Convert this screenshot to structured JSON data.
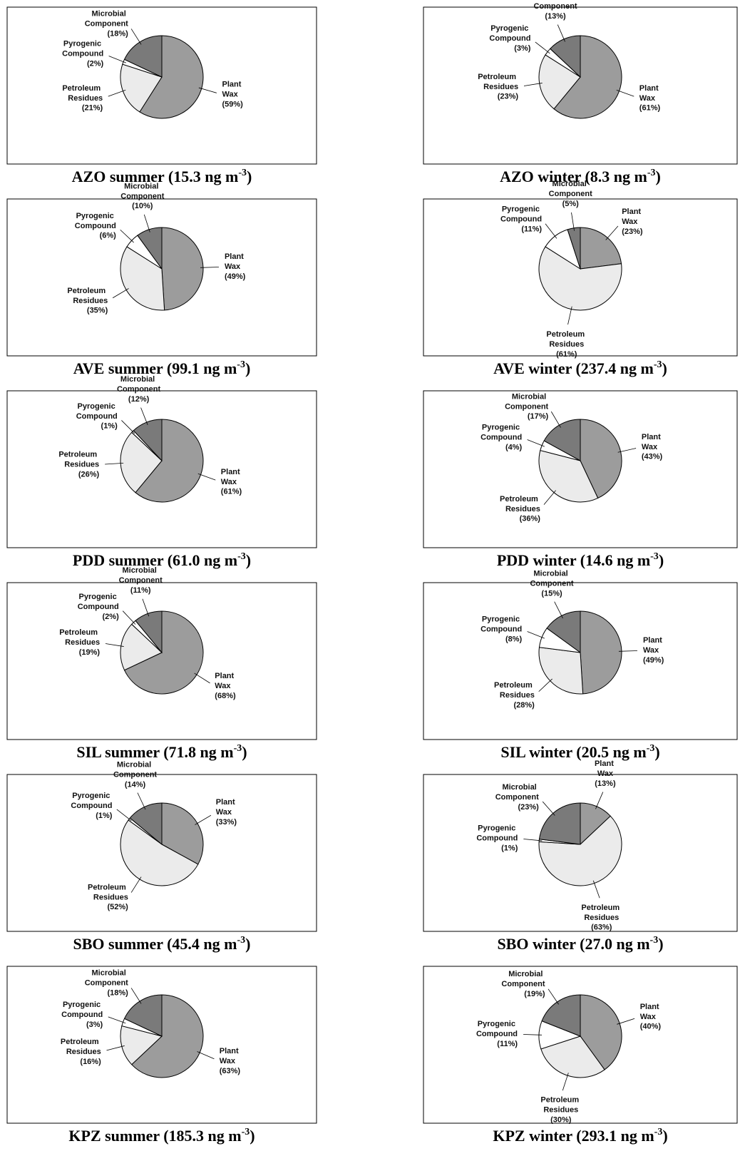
{
  "chart_data": [
    {
      "type": "pie",
      "title": "AZO summer (15.3 ng m",
      "title_sup": "-3",
      "title_end": ")",
      "categories": [
        "Plant Wax",
        "Petroleum Residues",
        "Pyrogenic Compound",
        "Microbial Component"
      ],
      "values": [
        59,
        21,
        2,
        18
      ],
      "value_labels": [
        "(59%)",
        "(21%)",
        "(2%)",
        "(18%)"
      ],
      "colors": [
        "#9c9c9c",
        "#ebebeb",
        "#ffffff",
        "#7a7a7a"
      ]
    },
    {
      "type": "pie",
      "title": "AZO winter (8.3 ng m",
      "title_sup": "-3",
      "title_end": ")",
      "categories": [
        "Plant Wax",
        "Petroleum Residues",
        "Pyrogenic Compound",
        "Microbial Component"
      ],
      "values": [
        61,
        23,
        3,
        13
      ],
      "value_labels": [
        "(61%)",
        "(23%)",
        "(3%)",
        "(13%)"
      ],
      "colors": [
        "#9c9c9c",
        "#ebebeb",
        "#ffffff",
        "#7a7a7a"
      ]
    },
    {
      "type": "pie",
      "title": "AVE summer (99.1 ng m",
      "title_sup": "-3",
      "title_end": ")",
      "categories": [
        "Plant Wax",
        "Petroleum Residues",
        "Pyrogenic Compound",
        "Microbial Component"
      ],
      "values": [
        49,
        35,
        6,
        10
      ],
      "value_labels": [
        "(49%)",
        "(35%)",
        "(6%)",
        "(10%)"
      ],
      "colors": [
        "#9c9c9c",
        "#ebebeb",
        "#ffffff",
        "#7a7a7a"
      ]
    },
    {
      "type": "pie",
      "title": "AVE winter (237.4 ng m",
      "title_sup": "-3",
      "title_end": ")",
      "categories": [
        "Plant Wax",
        "Petroleum Residues",
        "Pyrogenic Compound",
        "Microbial Component"
      ],
      "values": [
        23,
        61,
        11,
        5
      ],
      "value_labels": [
        "(23%)",
        "(61%)",
        "(11%)",
        "(5%)"
      ],
      "colors": [
        "#9c9c9c",
        "#ebebeb",
        "#ffffff",
        "#7a7a7a"
      ]
    },
    {
      "type": "pie",
      "title": "PDD summer (61.0 ng m",
      "title_sup": "-3",
      "title_end": ")",
      "categories": [
        "Plant Wax",
        "Petroleum Residues",
        "Pyrogenic Compound",
        "Microbial Component"
      ],
      "values": [
        61,
        26,
        1,
        12
      ],
      "value_labels": [
        "(61%)",
        "(26%)",
        "(1%)",
        "(12%)"
      ],
      "colors": [
        "#9c9c9c",
        "#ebebeb",
        "#ffffff",
        "#7a7a7a"
      ]
    },
    {
      "type": "pie",
      "title": "PDD winter (14.6 ng m",
      "title_sup": "-3",
      "title_end": ")",
      "categories": [
        "Plant Wax",
        "Petroleum Residues",
        "Pyrogenic Compound",
        "Microbial Component"
      ],
      "values": [
        43,
        36,
        4,
        17
      ],
      "value_labels": [
        "(43%)",
        "(36%)",
        "(4%)",
        "(17%)"
      ],
      "colors": [
        "#9c9c9c",
        "#ebebeb",
        "#ffffff",
        "#7a7a7a"
      ]
    },
    {
      "type": "pie",
      "title": "SIL summer (71.8 ng m",
      "title_sup": "-3",
      "title_end": ")",
      "categories": [
        "Plant Wax",
        "Petroleum Residues",
        "Pyrogenic Compound",
        "Microbial Component"
      ],
      "values": [
        68,
        19,
        2,
        11
      ],
      "value_labels": [
        "(68%)",
        "(19%)",
        "(2%)",
        "(11%)"
      ],
      "colors": [
        "#9c9c9c",
        "#ebebeb",
        "#ffffff",
        "#7a7a7a"
      ]
    },
    {
      "type": "pie",
      "title": "SIL winter (20.5 ng m",
      "title_sup": "-3",
      "title_end": ")",
      "categories": [
        "Plant Wax",
        "Petroleum Residues",
        "Pyrogenic Compound",
        "Microbial Component"
      ],
      "values": [
        49,
        28,
        8,
        15
      ],
      "value_labels": [
        "(49%)",
        "(28%)",
        "(8%)",
        "(15%)"
      ],
      "colors": [
        "#9c9c9c",
        "#ebebeb",
        "#ffffff",
        "#7a7a7a"
      ]
    },
    {
      "type": "pie",
      "title": "SBO summer (45.4 ng m",
      "title_sup": "-3",
      "title_end": ")",
      "categories": [
        "Plant Wax",
        "Petroleum Residues",
        "Pyrogenic Compound",
        "Microbial Component"
      ],
      "values": [
        33,
        52,
        1,
        14
      ],
      "value_labels": [
        "(33%)",
        "(52%)",
        "(1%)",
        "(14%)"
      ],
      "colors": [
        "#9c9c9c",
        "#ebebeb",
        "#ffffff",
        "#7a7a7a"
      ]
    },
    {
      "type": "pie",
      "title": "SBO winter (27.0 ng m",
      "title_sup": "-3",
      "title_end": ")",
      "categories": [
        "Plant Wax",
        "Petroleum Residues",
        "Pyrogenic Compound",
        "Microbial Component"
      ],
      "values": [
        13,
        63,
        1,
        23
      ],
      "value_labels": [
        "(13%)",
        "(63%)",
        "(1%)",
        "(23%)"
      ],
      "colors": [
        "#9c9c9c",
        "#ebebeb",
        "#ffffff",
        "#7a7a7a"
      ]
    },
    {
      "type": "pie",
      "title": "KPZ summer (185.3 ng m",
      "title_sup": "-3",
      "title_end": ")",
      "categories": [
        "Plant Wax",
        "Petroleum Residues",
        "Pyrogenic Compound",
        "Microbial Component"
      ],
      "values": [
        63,
        16,
        3,
        18
      ],
      "value_labels": [
        "(63%)",
        "(16%)",
        "(3%)",
        "(18%)"
      ],
      "colors": [
        "#9c9c9c",
        "#ebebeb",
        "#ffffff",
        "#7a7a7a"
      ]
    },
    {
      "type": "pie",
      "title": "KPZ winter (293.1 ng m",
      "title_sup": "-3",
      "title_end": ")",
      "categories": [
        "Plant Wax",
        "Petroleum Residues",
        "Pyrogenic Compound",
        "Microbial Component"
      ],
      "values": [
        40,
        30,
        11,
        19
      ],
      "value_labels": [
        "(40%)",
        "(30%)",
        "(11%)",
        "(19%)"
      ],
      "colors": [
        "#9c9c9c",
        "#ebebeb",
        "#ffffff",
        "#7a7a7a"
      ]
    }
  ]
}
